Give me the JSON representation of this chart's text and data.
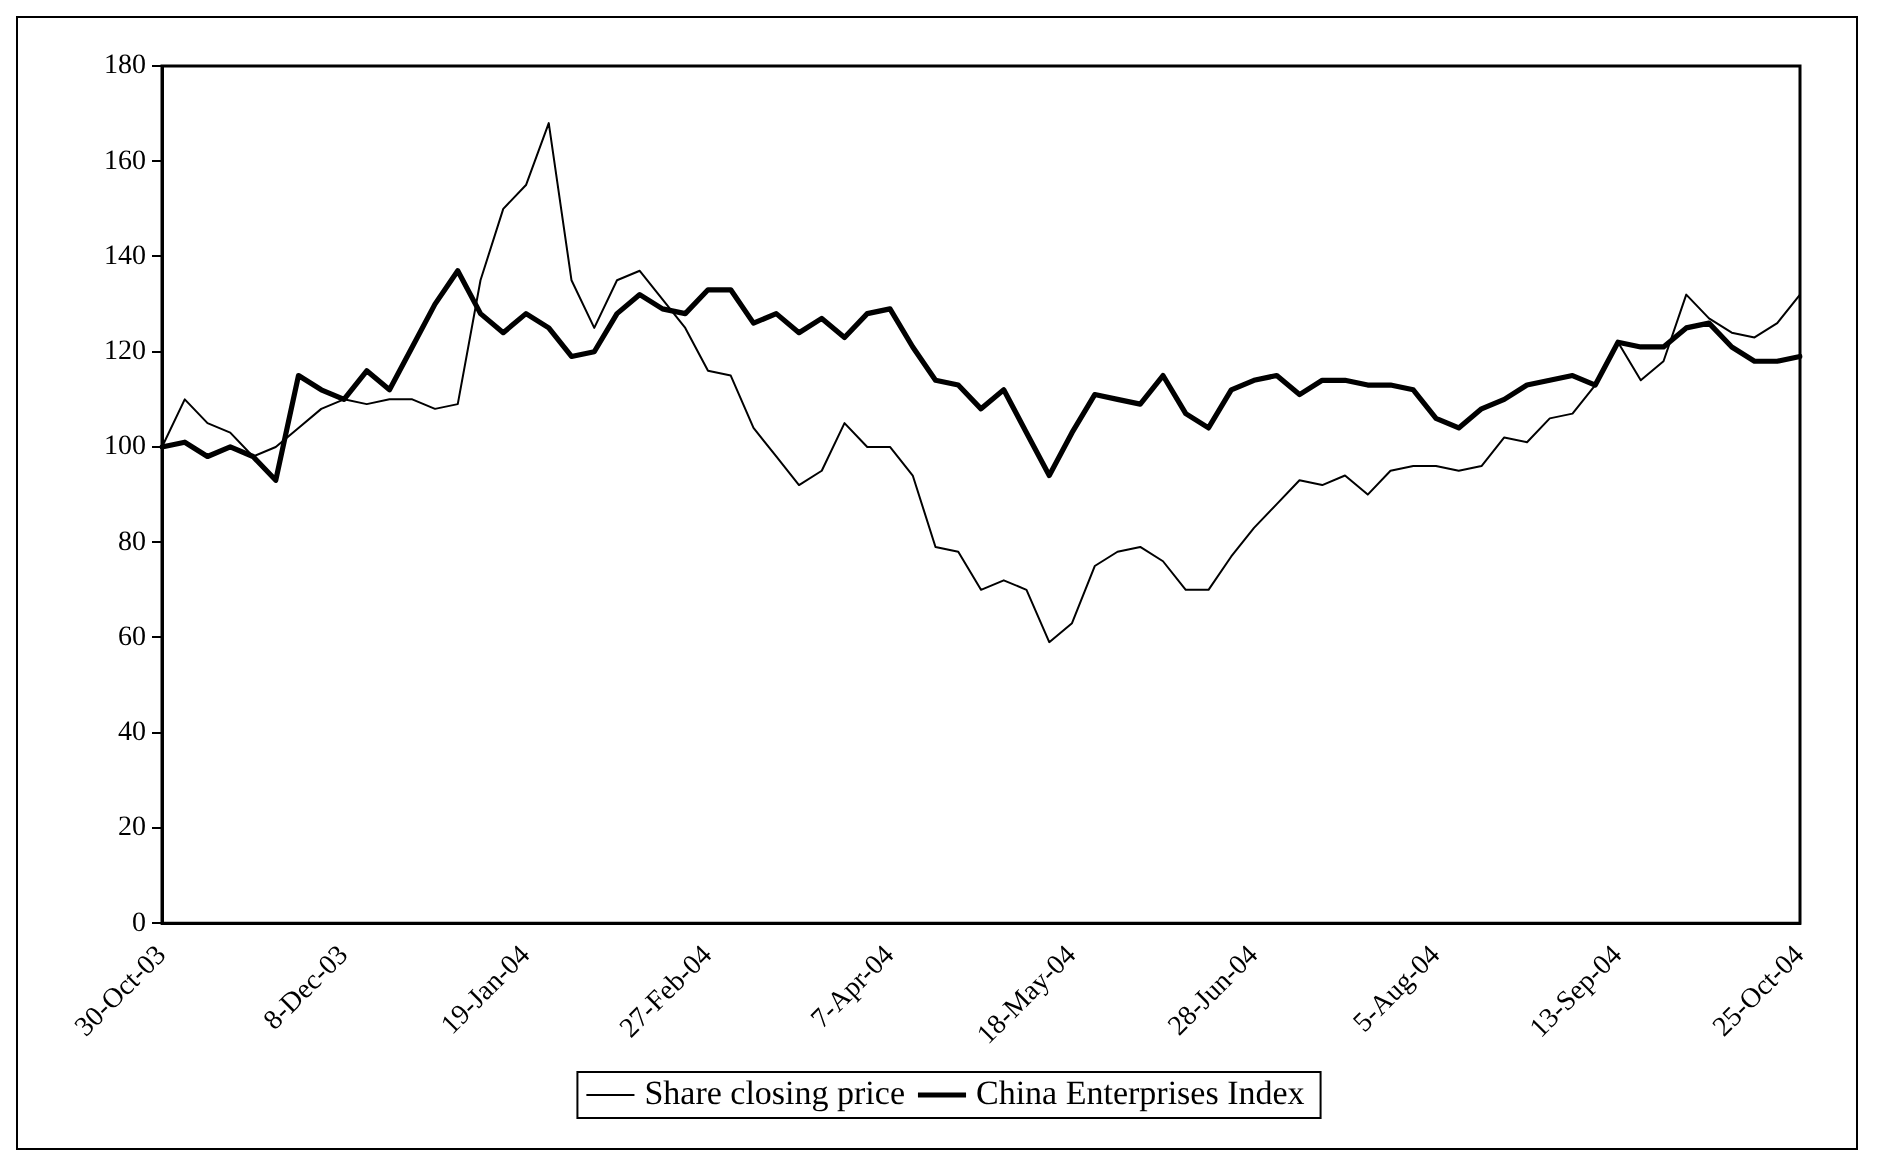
{
  "chart_data": {
    "type": "line",
    "categories": [
      "30-Oct-03",
      null,
      null,
      null,
      null,
      null,
      null,
      null,
      "8-Dec-03",
      null,
      null,
      null,
      null,
      null,
      null,
      null,
      "19-Jan-04",
      null,
      null,
      null,
      null,
      null,
      null,
      null,
      "27-Feb-04",
      null,
      null,
      null,
      null,
      null,
      null,
      null,
      "7-Apr-04",
      null,
      null,
      null,
      null,
      null,
      null,
      null,
      "18-May-04",
      null,
      null,
      null,
      null,
      null,
      null,
      null,
      "28-Jun-04",
      null,
      null,
      null,
      null,
      null,
      null,
      null,
      "5-Aug-04",
      null,
      null,
      null,
      null,
      null,
      null,
      null,
      "13-Sep-04",
      null,
      null,
      null,
      null,
      null,
      null,
      null,
      "25-Oct-04"
    ],
    "series": [
      {
        "name": "Share closing price",
        "color": "#000000",
        "values": [
          100,
          110,
          105,
          103,
          98,
          100,
          104,
          108,
          110,
          109,
          110,
          110,
          108,
          109,
          135,
          150,
          155,
          168,
          135,
          125,
          135,
          137,
          131,
          125,
          116,
          115,
          104,
          98,
          92,
          95,
          105,
          100,
          100,
          94,
          79,
          78,
          70,
          72,
          70,
          59,
          63,
          75,
          78,
          79,
          76,
          70,
          70,
          77,
          83,
          88,
          93,
          92,
          94,
          90,
          95,
          96,
          96,
          95,
          96,
          102,
          101,
          106,
          107,
          113,
          122,
          114,
          118,
          132,
          127,
          124,
          123,
          126,
          132
        ]
      },
      {
        "name": "China Enterprises Index",
        "color": "#000000",
        "values": [
          100,
          101,
          98,
          100,
          98,
          93,
          115,
          112,
          110,
          116,
          112,
          121,
          130,
          137,
          128,
          124,
          128,
          125,
          119,
          120,
          128,
          132,
          129,
          128,
          133,
          133,
          126,
          128,
          124,
          127,
          123,
          128,
          129,
          121,
          114,
          113,
          108,
          112,
          103,
          94,
          103,
          111,
          110,
          109,
          115,
          107,
          104,
          112,
          114,
          115,
          111,
          114,
          114,
          113,
          113,
          112,
          106,
          104,
          108,
          110,
          113,
          114,
          115,
          113,
          122,
          121,
          121,
          125,
          126,
          121,
          118,
          118,
          119
        ]
      }
    ],
    "ylim": [
      0,
      180
    ],
    "yticks": [
      0,
      20,
      40,
      60,
      80,
      100,
      120,
      140,
      160,
      180
    ],
    "grid": false,
    "legend": "bottom",
    "marker": "none",
    "line_style": "solid"
  }
}
